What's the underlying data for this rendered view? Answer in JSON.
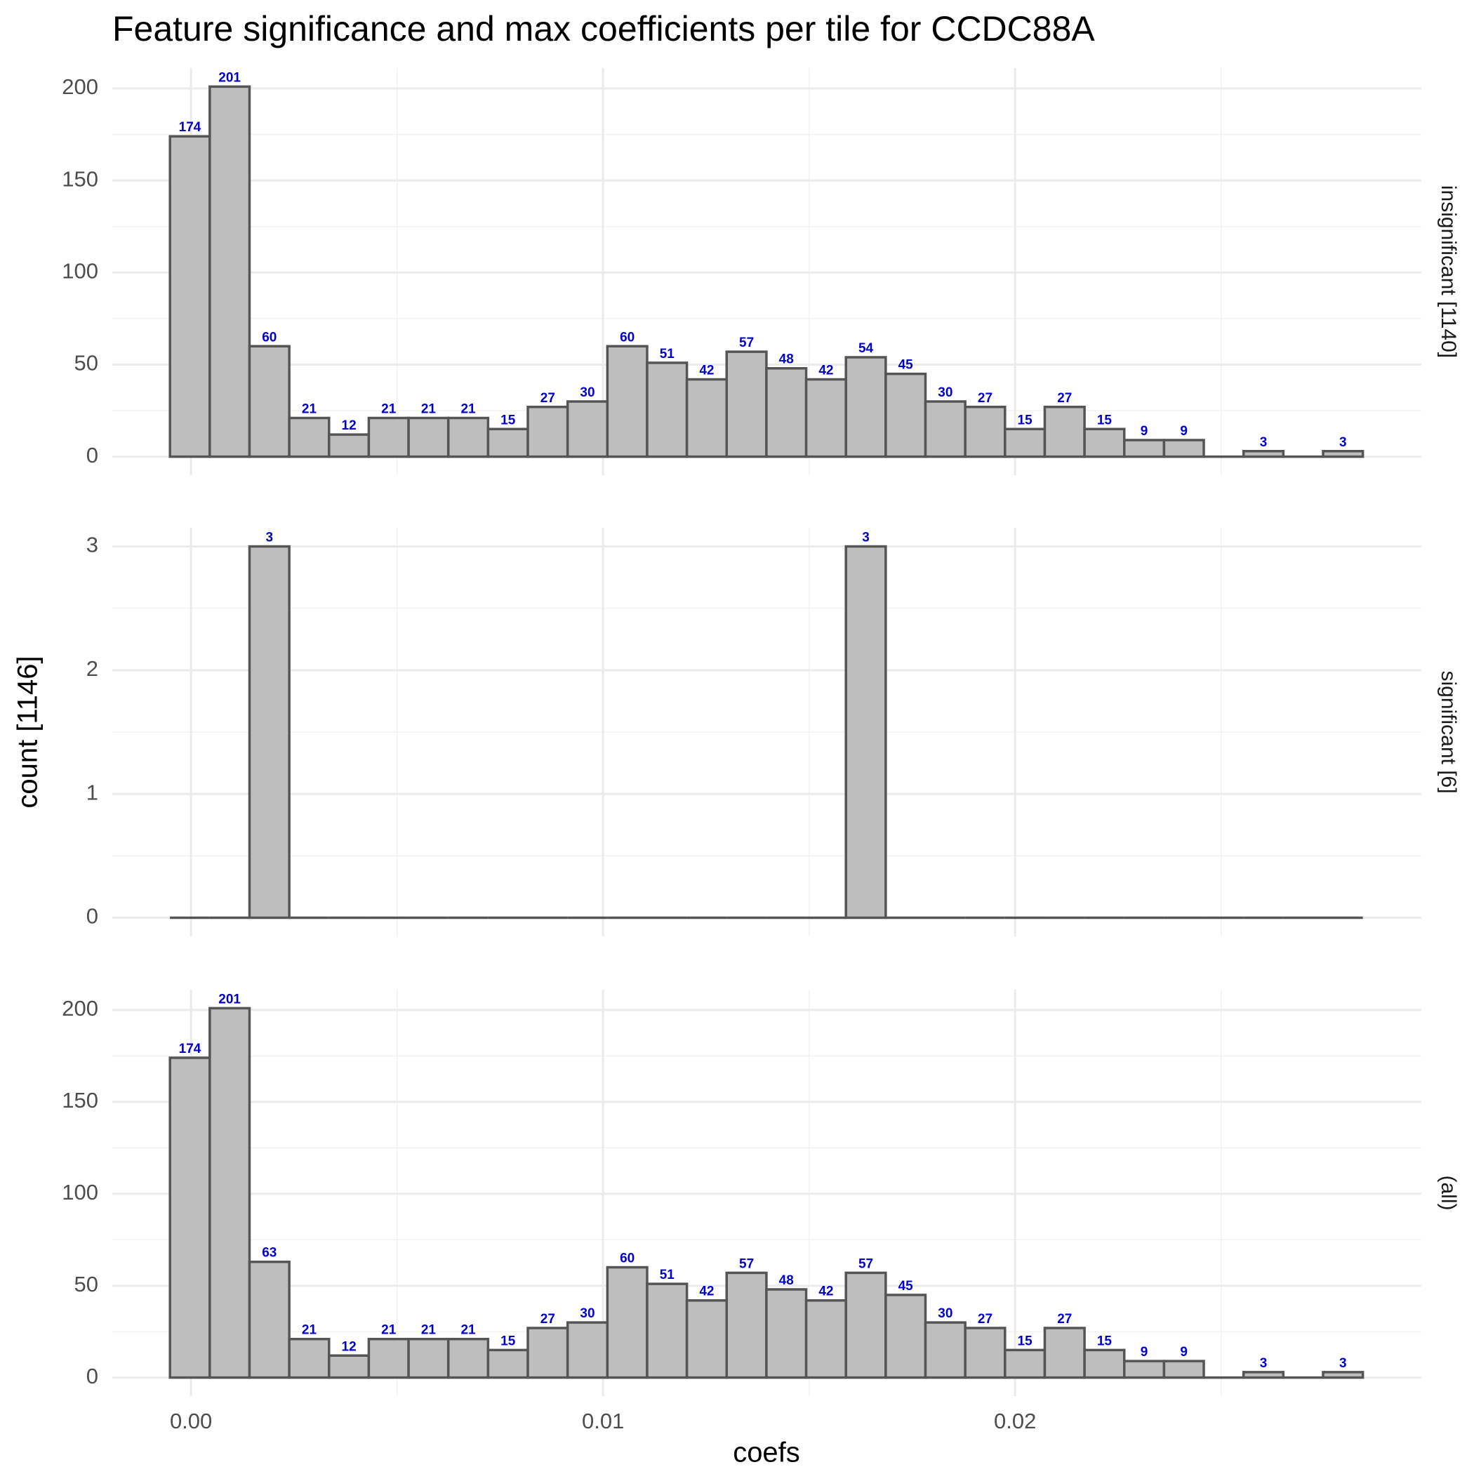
{
  "title": "Feature significance and max coefficients per tile for CCDC88A",
  "xlabel": "coefs",
  "ylabel": "count [1146]",
  "chart_data": [
    {
      "type": "histogram",
      "label": "insignificant [1140]",
      "bins": [
        -0.00051,
        0.000455,
        0.00142,
        0.002385,
        0.00335,
        0.004315,
        0.00528,
        0.006245,
        0.00721,
        0.008175,
        0.00914,
        0.010105,
        0.01107,
        0.012035,
        0.013,
        0.013965,
        0.01493,
        0.015895,
        0.01686,
        0.017825,
        0.01879,
        0.019755,
        0.02072,
        0.021685,
        0.02265,
        0.023615,
        0.02458,
        0.025545,
        0.02651,
        0.027475,
        0.02844
      ],
      "values": [
        174,
        201,
        60,
        21,
        12,
        21,
        21,
        21,
        15,
        27,
        30,
        60,
        51,
        42,
        57,
        48,
        42,
        54,
        45,
        30,
        27,
        15,
        27,
        15,
        9,
        9,
        0,
        3,
        0,
        3
      ],
      "color": "#bebebe",
      "edge_color": "#555555",
      "label_color": "#0000cc",
      "xlim": [
        -0.00191,
        0.02986
      ],
      "xticks": [
        {
          "value": 0,
          "label": "0.00"
        },
        0.01,
        0.02
      ],
      "minor_xticks": [
        0.005,
        0.015,
        0.025
      ],
      "ylim": [
        -10.05,
        211.05
      ],
      "yticks": [
        0,
        50,
        100,
        150,
        200
      ],
      "minor_yticks": [
        25,
        75,
        125,
        175
      ],
      "grid": true
    },
    {
      "type": "histogram",
      "label": "significant [6]",
      "bins": [
        -0.00051,
        0.000455,
        0.00142,
        0.002385,
        0.00335,
        0.004315,
        0.00528,
        0.006245,
        0.00721,
        0.008175,
        0.00914,
        0.010105,
        0.01107,
        0.012035,
        0.013,
        0.013965,
        0.01493,
        0.015895,
        0.01686,
        0.017825,
        0.01879,
        0.019755,
        0.02072,
        0.021685,
        0.02265,
        0.023615,
        0.02458,
        0.025545,
        0.02651,
        0.027475,
        0.02844
      ],
      "values": [
        0,
        0,
        3,
        0,
        0,
        0,
        0,
        0,
        0,
        0,
        0,
        0,
        0,
        0,
        0,
        0,
        0,
        3,
        0,
        0,
        0,
        0,
        0,
        0,
        0,
        0,
        0,
        0,
        0,
        0
      ],
      "color": "#bebebe",
      "edge_color": "#555555",
      "label_color": "#0000cc",
      "xlim": [
        -0.00191,
        0.02986
      ],
      "xticks": [
        {
          "value": 0,
          "label": "0.00"
        },
        0.01,
        0.02
      ],
      "minor_xticks": [
        0.005,
        0.015,
        0.025
      ],
      "ylim": [
        -0.15,
        3.15
      ],
      "yticks": [
        0,
        1,
        2,
        3
      ],
      "minor_yticks": [
        0.5,
        1.5,
        2.5
      ],
      "grid": true
    },
    {
      "type": "histogram",
      "label": "(all)",
      "bins": [
        -0.00051,
        0.000455,
        0.00142,
        0.002385,
        0.00335,
        0.004315,
        0.00528,
        0.006245,
        0.00721,
        0.008175,
        0.00914,
        0.010105,
        0.01107,
        0.012035,
        0.013,
        0.013965,
        0.01493,
        0.015895,
        0.01686,
        0.017825,
        0.01879,
        0.019755,
        0.02072,
        0.021685,
        0.02265,
        0.023615,
        0.02458,
        0.025545,
        0.02651,
        0.027475,
        0.02844
      ],
      "values": [
        174,
        201,
        63,
        21,
        12,
        21,
        21,
        21,
        15,
        27,
        30,
        60,
        51,
        42,
        57,
        48,
        42,
        57,
        45,
        30,
        27,
        15,
        27,
        15,
        9,
        9,
        0,
        3,
        0,
        3
      ],
      "color": "#bebebe",
      "edge_color": "#555555",
      "label_color": "#0000cc",
      "xlim": [
        -0.00191,
        0.02986
      ],
      "xticks": [
        {
          "value": 0,
          "label": "0.00"
        },
        0.01,
        0.02
      ],
      "minor_xticks": [
        0.005,
        0.015,
        0.025
      ],
      "ylim": [
        -10.05,
        211.05
      ],
      "yticks": [
        0,
        50,
        100,
        150,
        200
      ],
      "minor_yticks": [
        25,
        75,
        125,
        175
      ],
      "grid": true,
      "show_xaxis": true
    }
  ]
}
